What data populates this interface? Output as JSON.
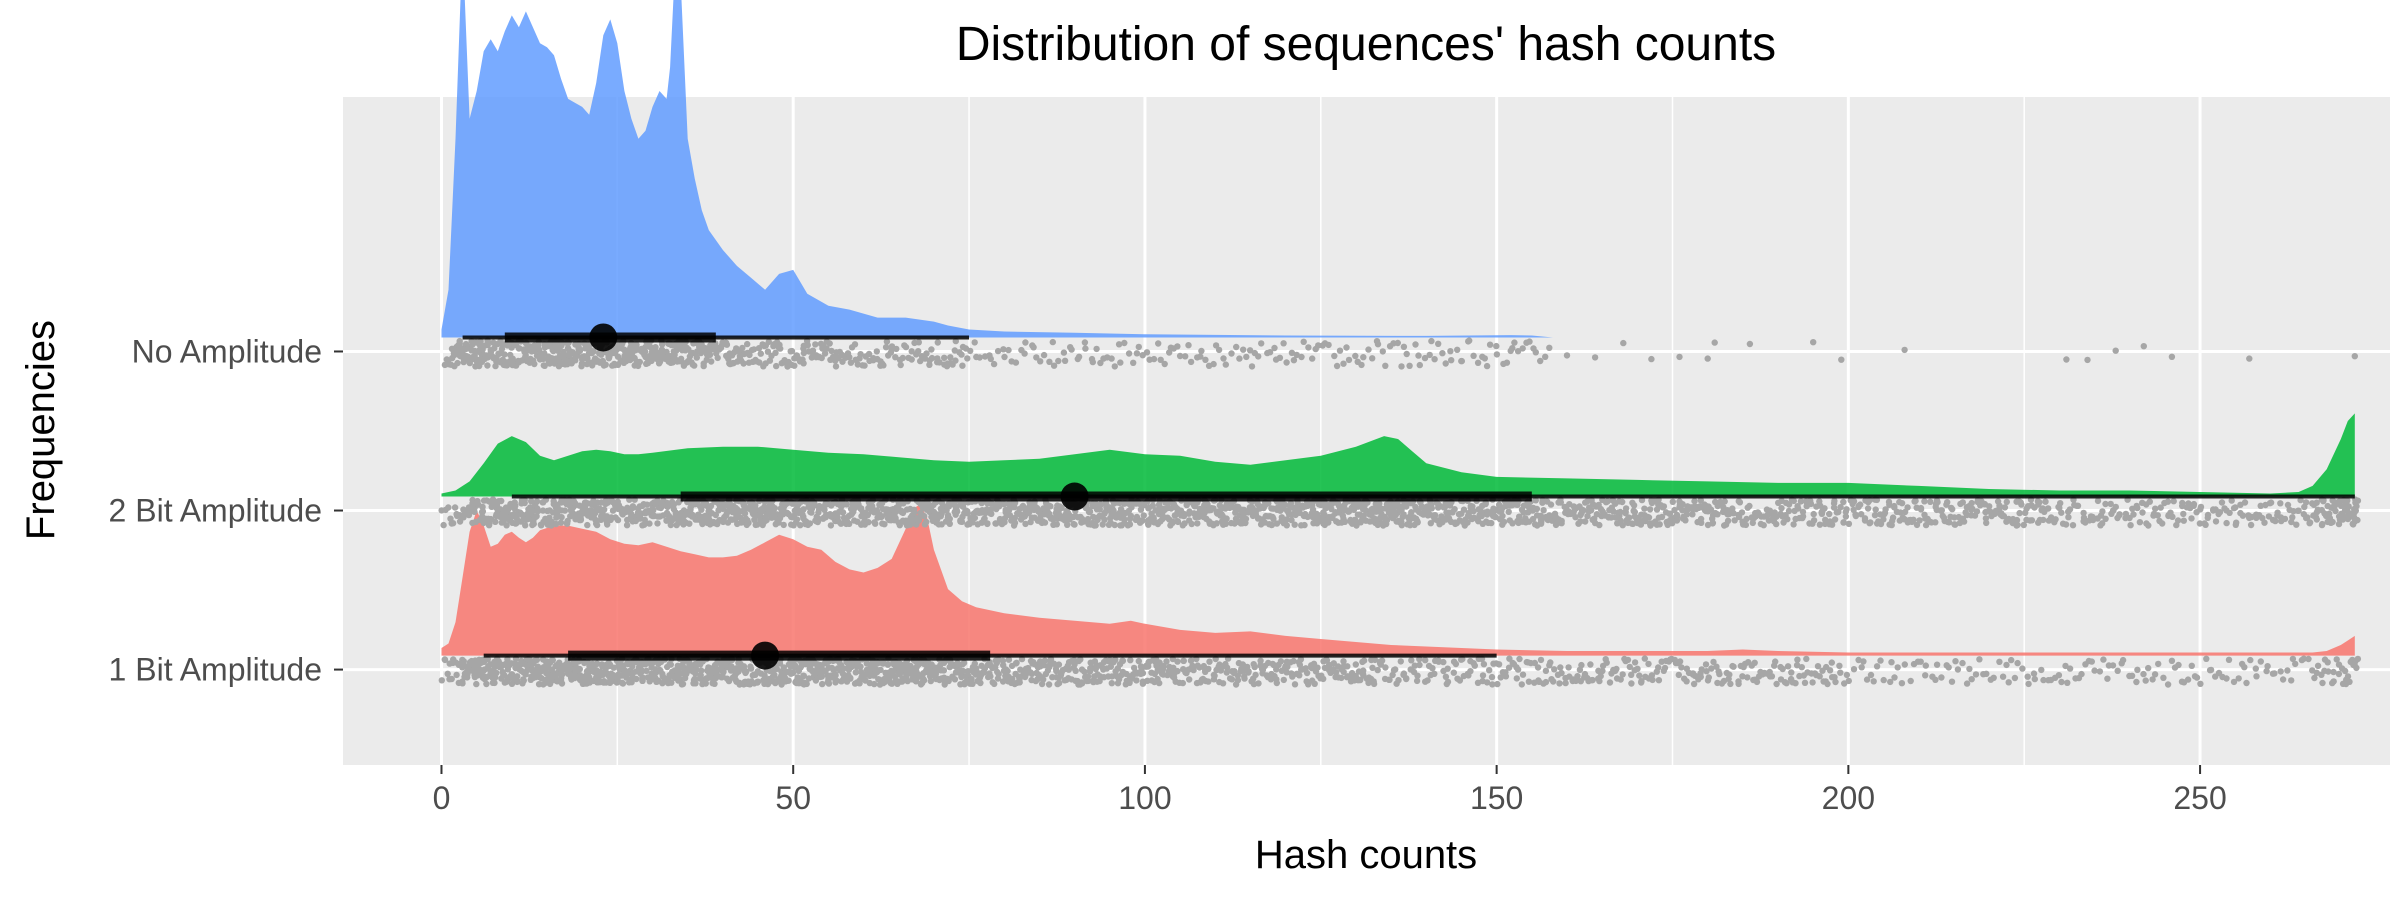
{
  "chart_data": {
    "type": "raincloud",
    "title": "Distribution of sequences' hash counts",
    "xlabel": "Hash counts",
    "ylabel": "Frequencies",
    "xlim": [
      -14,
      277
    ],
    "x_ticks": [
      0,
      50,
      100,
      150,
      200,
      250
    ],
    "x_tick_labels": [
      "0",
      "50",
      "100",
      "150",
      "200",
      "250"
    ],
    "x_minor_ticks": [
      25,
      75,
      125,
      175,
      225
    ],
    "grid": true,
    "legend": "none",
    "categories": [
      "1 Bit Amplitude",
      "2 Bit Amplitude",
      "No Amplitude"
    ],
    "series": [
      {
        "name": "1 Bit Amplitude",
        "color": "#F8766D",
        "density": [
          [
            0,
            0.05
          ],
          [
            1,
            0.08
          ],
          [
            2,
            0.22
          ],
          [
            3,
            0.52
          ],
          [
            4,
            0.82
          ],
          [
            5,
            0.96
          ],
          [
            6,
            0.86
          ],
          [
            7,
            0.72
          ],
          [
            8,
            0.74
          ],
          [
            9,
            0.8
          ],
          [
            10,
            0.82
          ],
          [
            11,
            0.78
          ],
          [
            12,
            0.75
          ],
          [
            13,
            0.78
          ],
          [
            14,
            0.83
          ],
          [
            16,
            0.86
          ],
          [
            18,
            0.86
          ],
          [
            20,
            0.84
          ],
          [
            22,
            0.82
          ],
          [
            24,
            0.77
          ],
          [
            26,
            0.74
          ],
          [
            28,
            0.73
          ],
          [
            30,
            0.75
          ],
          [
            32,
            0.72
          ],
          [
            34,
            0.69
          ],
          [
            36,
            0.67
          ],
          [
            38,
            0.65
          ],
          [
            40,
            0.65
          ],
          [
            42,
            0.66
          ],
          [
            44,
            0.7
          ],
          [
            46,
            0.75
          ],
          [
            48,
            0.8
          ],
          [
            50,
            0.77
          ],
          [
            52,
            0.72
          ],
          [
            54,
            0.7
          ],
          [
            56,
            0.62
          ],
          [
            58,
            0.57
          ],
          [
            60,
            0.55
          ],
          [
            62,
            0.58
          ],
          [
            64,
            0.64
          ],
          [
            66,
            0.84
          ],
          [
            67,
            0.97
          ],
          [
            68,
            1.0
          ],
          [
            69,
            0.92
          ],
          [
            70,
            0.7
          ],
          [
            72,
            0.44
          ],
          [
            74,
            0.36
          ],
          [
            76,
            0.32
          ],
          [
            80,
            0.28
          ],
          [
            85,
            0.25
          ],
          [
            90,
            0.23
          ],
          [
            95,
            0.21
          ],
          [
            98,
            0.23
          ],
          [
            100,
            0.21
          ],
          [
            105,
            0.17
          ],
          [
            110,
            0.15
          ],
          [
            115,
            0.16
          ],
          [
            120,
            0.13
          ],
          [
            125,
            0.11
          ],
          [
            130,
            0.09
          ],
          [
            135,
            0.07
          ],
          [
            140,
            0.06
          ],
          [
            145,
            0.05
          ],
          [
            150,
            0.04
          ],
          [
            160,
            0.03
          ],
          [
            170,
            0.03
          ],
          [
            180,
            0.03
          ],
          [
            185,
            0.04
          ],
          [
            190,
            0.03
          ],
          [
            200,
            0.02
          ],
          [
            210,
            0.02
          ],
          [
            220,
            0.02
          ],
          [
            230,
            0.02
          ],
          [
            240,
            0.02
          ],
          [
            250,
            0.02
          ],
          [
            260,
            0.02
          ],
          [
            266,
            0.02
          ],
          [
            268,
            0.03
          ],
          [
            270,
            0.07
          ],
          [
            271,
            0.1
          ],
          [
            272,
            0.13
          ]
        ],
        "median": 46,
        "iqr": [
          18,
          78
        ],
        "range": [
          6,
          150
        ]
      },
      {
        "name": "2 Bit Amplitude",
        "color": "#00BA38",
        "density": [
          [
            0,
            0.02
          ],
          [
            2,
            0.04
          ],
          [
            4,
            0.1
          ],
          [
            6,
            0.22
          ],
          [
            8,
            0.35
          ],
          [
            10,
            0.4
          ],
          [
            12,
            0.36
          ],
          [
            14,
            0.27
          ],
          [
            16,
            0.24
          ],
          [
            18,
            0.27
          ],
          [
            20,
            0.3
          ],
          [
            22,
            0.31
          ],
          [
            24,
            0.3
          ],
          [
            26,
            0.28
          ],
          [
            28,
            0.28
          ],
          [
            30,
            0.29
          ],
          [
            35,
            0.32
          ],
          [
            40,
            0.33
          ],
          [
            45,
            0.33
          ],
          [
            50,
            0.31
          ],
          [
            55,
            0.29
          ],
          [
            60,
            0.28
          ],
          [
            65,
            0.26
          ],
          [
            70,
            0.24
          ],
          [
            75,
            0.23
          ],
          [
            80,
            0.24
          ],
          [
            85,
            0.25
          ],
          [
            90,
            0.28
          ],
          [
            95,
            0.31
          ],
          [
            100,
            0.28
          ],
          [
            105,
            0.27
          ],
          [
            110,
            0.23
          ],
          [
            115,
            0.21
          ],
          [
            120,
            0.24
          ],
          [
            125,
            0.27
          ],
          [
            130,
            0.33
          ],
          [
            134,
            0.4
          ],
          [
            136,
            0.38
          ],
          [
            138,
            0.3
          ],
          [
            140,
            0.22
          ],
          [
            145,
            0.16
          ],
          [
            150,
            0.13
          ],
          [
            160,
            0.12
          ],
          [
            170,
            0.11
          ],
          [
            180,
            0.1
          ],
          [
            190,
            0.09
          ],
          [
            200,
            0.09
          ],
          [
            210,
            0.07
          ],
          [
            220,
            0.05
          ],
          [
            230,
            0.04
          ],
          [
            240,
            0.04
          ],
          [
            250,
            0.03
          ],
          [
            260,
            0.02
          ],
          [
            264,
            0.03
          ],
          [
            266,
            0.07
          ],
          [
            268,
            0.18
          ],
          [
            270,
            0.38
          ],
          [
            271,
            0.5
          ],
          [
            272,
            0.55
          ]
        ],
        "median": 90,
        "iqr": [
          34,
          155
        ],
        "range": [
          10,
          272
        ]
      },
      {
        "name": "No Amplitude",
        "color": "#619CFF",
        "density": [
          [
            0,
            0.02
          ],
          [
            1,
            0.12
          ],
          [
            2,
            0.5
          ],
          [
            2.7,
            0.85
          ],
          [
            3.2,
            0.9
          ],
          [
            4,
            0.55
          ],
          [
            5,
            0.62
          ],
          [
            6,
            0.72
          ],
          [
            7,
            0.75
          ],
          [
            8,
            0.72
          ],
          [
            9,
            0.77
          ],
          [
            10,
            0.81
          ],
          [
            11,
            0.78
          ],
          [
            12,
            0.82
          ],
          [
            13,
            0.78
          ],
          [
            14,
            0.74
          ],
          [
            15,
            0.73
          ],
          [
            16,
            0.71
          ],
          [
            17,
            0.65
          ],
          [
            18,
            0.6
          ],
          [
            19,
            0.59
          ],
          [
            20,
            0.58
          ],
          [
            21,
            0.56
          ],
          [
            22,
            0.64
          ],
          [
            23,
            0.76
          ],
          [
            24,
            0.8
          ],
          [
            25,
            0.74
          ],
          [
            26,
            0.62
          ],
          [
            27,
            0.55
          ],
          [
            28,
            0.5
          ],
          [
            29,
            0.52
          ],
          [
            30,
            0.58
          ],
          [
            31,
            0.62
          ],
          [
            32,
            0.6
          ],
          [
            32.5,
            0.68
          ],
          [
            33,
            0.86
          ],
          [
            33.5,
            1.0
          ],
          [
            34,
            0.9
          ],
          [
            35,
            0.5
          ],
          [
            36,
            0.4
          ],
          [
            37,
            0.32
          ],
          [
            38,
            0.27
          ],
          [
            40,
            0.22
          ],
          [
            42,
            0.18
          ],
          [
            44,
            0.15
          ],
          [
            46,
            0.12
          ],
          [
            48,
            0.16
          ],
          [
            50,
            0.17
          ],
          [
            52,
            0.11
          ],
          [
            55,
            0.08
          ],
          [
            58,
            0.07
          ],
          [
            62,
            0.05
          ],
          [
            66,
            0.05
          ],
          [
            70,
            0.04
          ],
          [
            72,
            0.03
          ],
          [
            75,
            0.02
          ],
          [
            80,
            0.015
          ],
          [
            90,
            0.012
          ],
          [
            100,
            0.008
          ],
          [
            120,
            0.005
          ],
          [
            140,
            0.004
          ],
          [
            152,
            0.006
          ],
          [
            155,
            0.005
          ],
          [
            158,
            0.0
          ]
        ],
        "median": 23,
        "iqr": [
          9,
          39
        ],
        "range": [
          3,
          75
        ]
      }
    ]
  }
}
